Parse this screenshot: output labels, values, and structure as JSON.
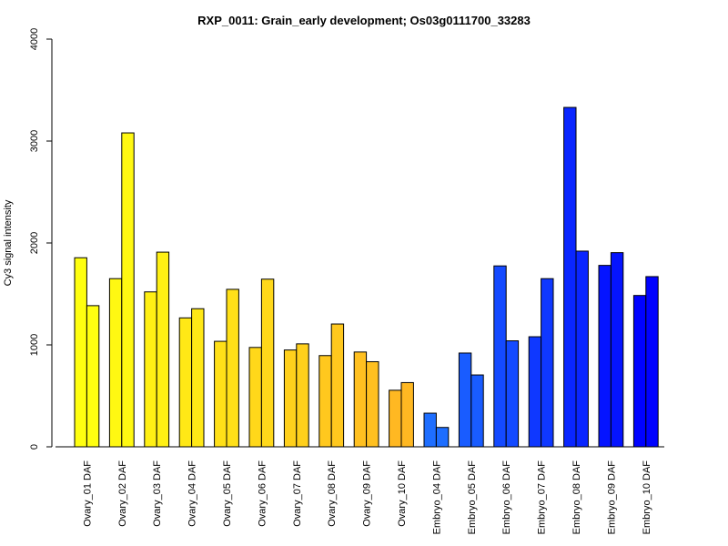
{
  "chart_data": {
    "type": "bar",
    "title": "RXP_0011: Grain_early development; Os03g0111700_33283",
    "xlabel": "",
    "ylabel": "Cy3 signal intensity",
    "ylim": [
      0,
      4000
    ],
    "yticks": [
      0,
      1000,
      2000,
      3000,
      4000
    ],
    "grid": false,
    "categories": [
      "Ovary_01 DAF",
      "Ovary_02 DAF",
      "Ovary_03 DAF",
      "Ovary_04 DAF",
      "Ovary_05 DAF",
      "Ovary_06 DAF",
      "Ovary_07 DAF",
      "Ovary_08 DAF",
      "Ovary_09 DAF",
      "Ovary_10 DAF",
      "Embryo_04 DAF",
      "Embryo_05 DAF",
      "Embryo_06 DAF",
      "Embryo_07 DAF",
      "Embryo_08 DAF",
      "Embryo_09 DAF",
      "Embryo_10 DAF"
    ],
    "colors": [
      "#ffff10",
      "#fff812",
      "#fff014",
      "#ffe816",
      "#ffe018",
      "#ffd81a",
      "#ffd01c",
      "#ffc81e",
      "#ffc020",
      "#ffb822",
      "#1e6eff",
      "#195cff",
      "#144aff",
      "#0f38ff",
      "#0a26ff",
      "#0514ff",
      "#0002ff"
    ],
    "series": [
      {
        "values": [
          1855,
          1650,
          1520,
          1265,
          1035,
          975,
          950,
          895,
          930,
          555,
          330,
          920,
          1775,
          1080,
          3330,
          1780,
          1485
        ]
      },
      {
        "values": [
          1385,
          3080,
          1910,
          1355,
          1545,
          1645,
          1010,
          1205,
          835,
          630,
          190,
          705,
          1040,
          1650,
          1920,
          1905,
          1670
        ]
      }
    ]
  }
}
